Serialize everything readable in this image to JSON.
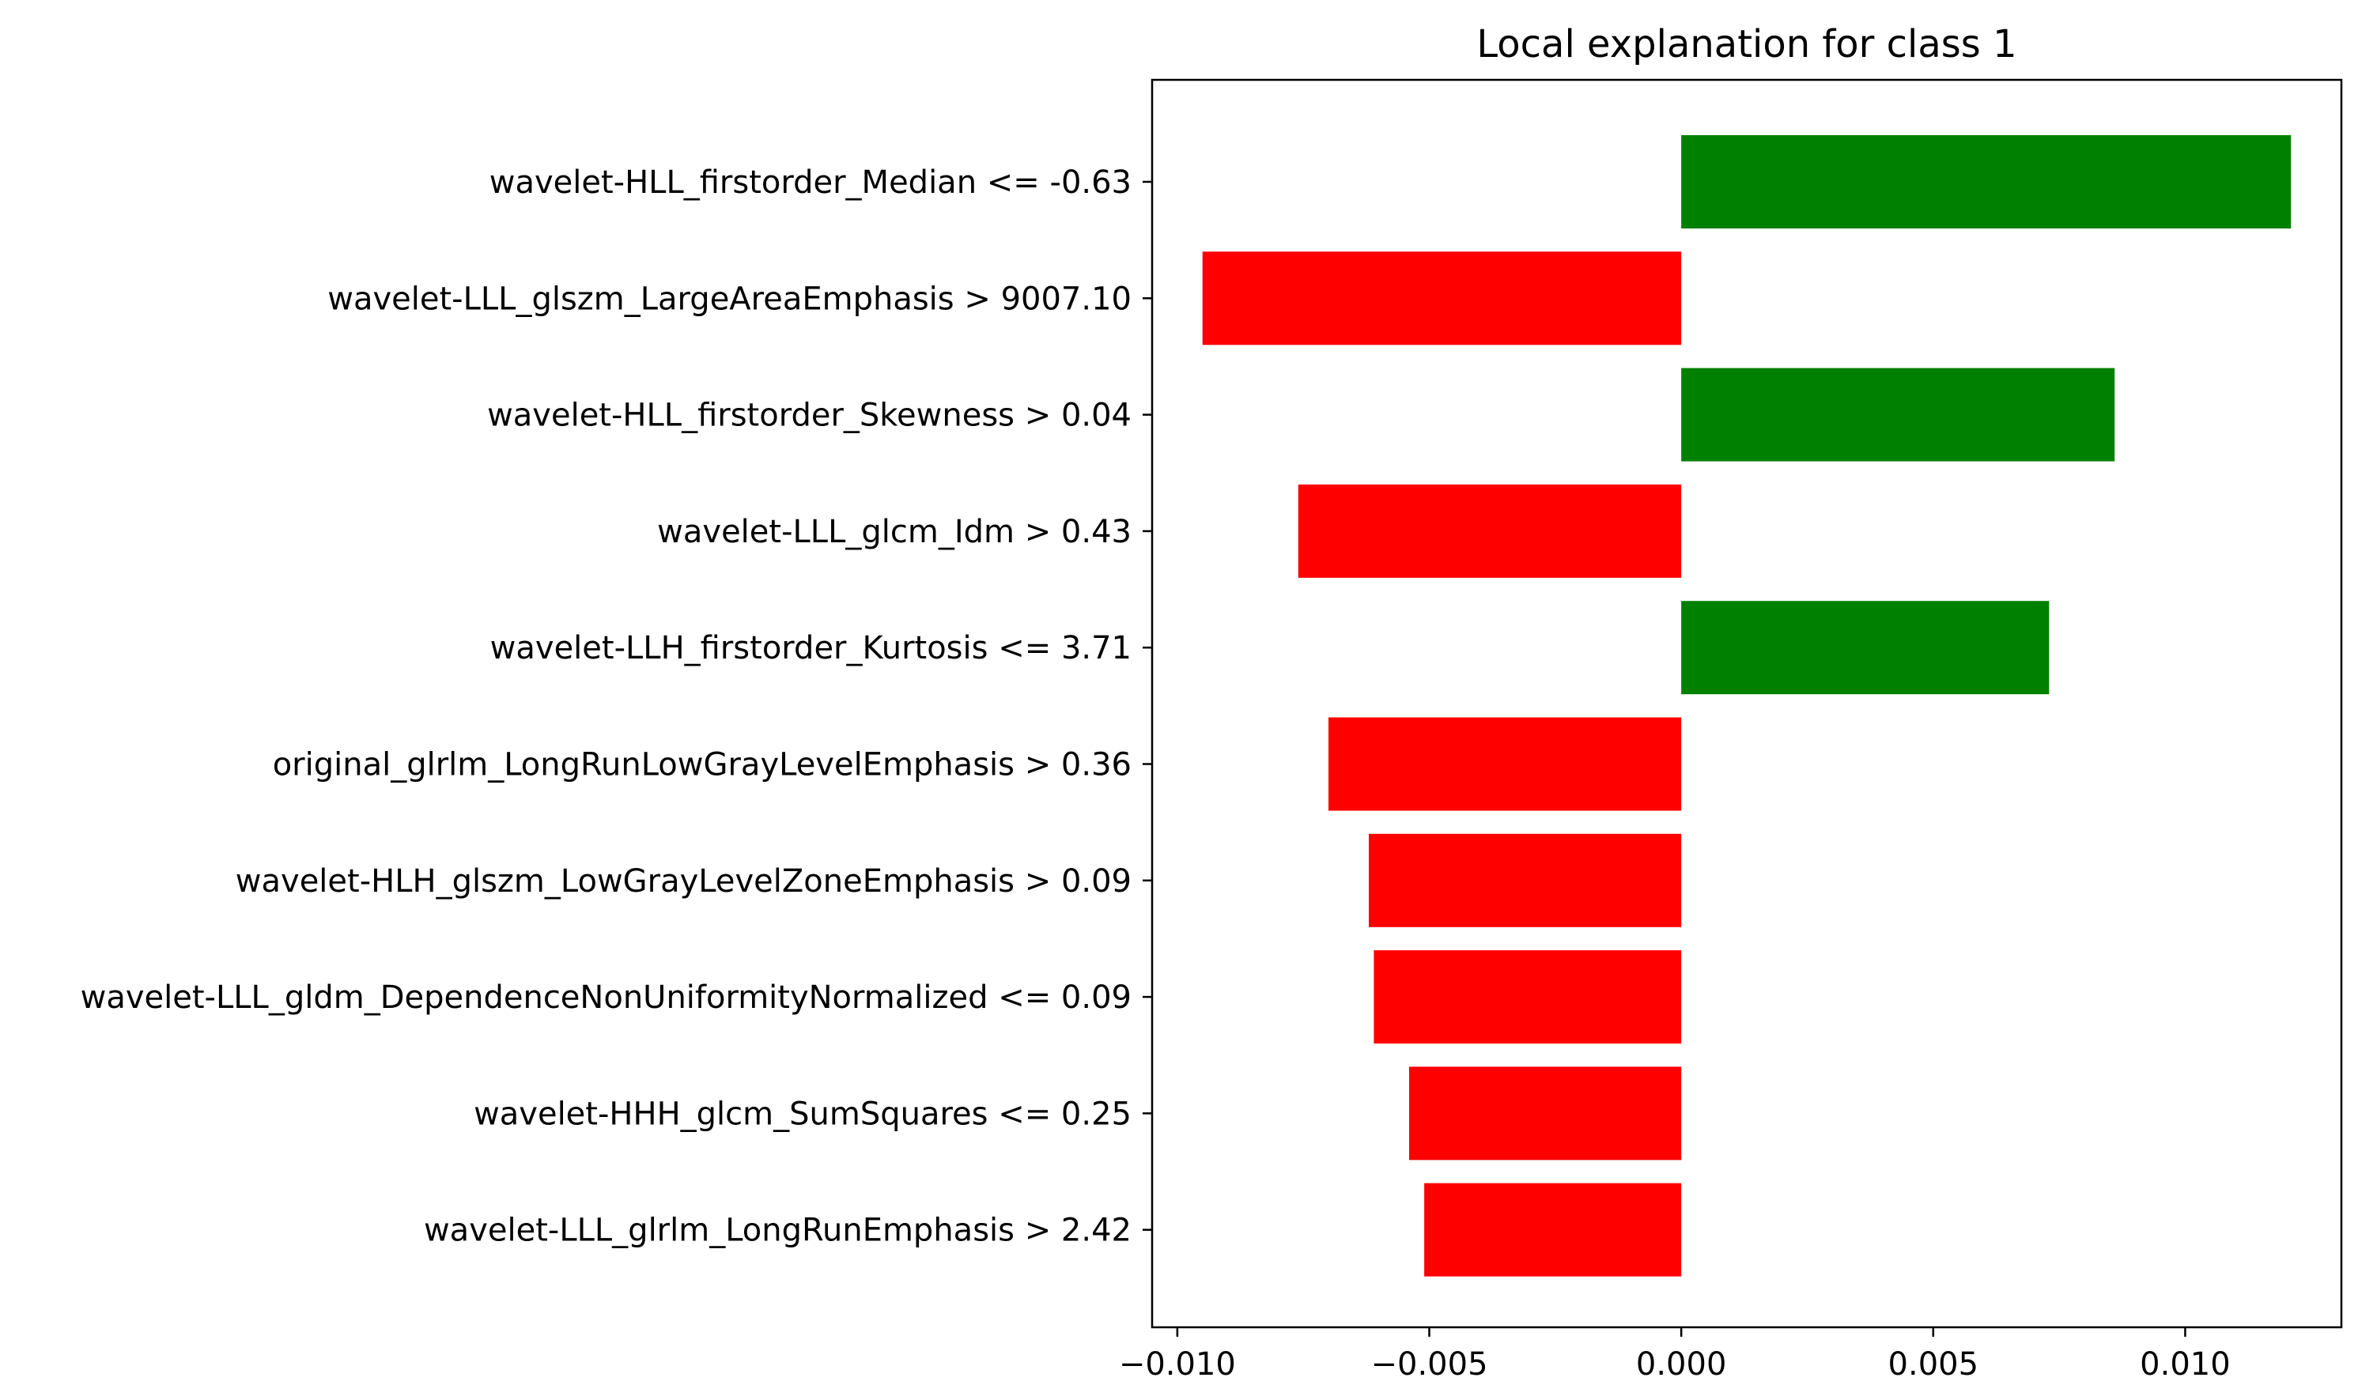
{
  "chart_data": {
    "type": "bar",
    "orientation": "horizontal",
    "title": "Local explanation for class 1",
    "xlabel": "",
    "ylabel": "",
    "xlim": [
      -0.0105,
      0.0131
    ],
    "xticks": [
      -0.01,
      -0.005,
      0.0,
      0.005,
      0.01
    ],
    "xtick_labels": [
      "−0.010",
      "−0.005",
      "0.000",
      "0.005",
      "0.010"
    ],
    "grid": false,
    "legend": "none",
    "colors": {
      "positive": "#008000",
      "negative": "#ff0000"
    },
    "categories": [
      "wavelet-HLL_firstorder_Median <= -0.63",
      "wavelet-LLL_glszm_LargeAreaEmphasis > 9007.10",
      "wavelet-HLL_firstorder_Skewness > 0.04",
      "wavelet-LLL_glcm_Idm > 0.43",
      "wavelet-LLH_firstorder_Kurtosis <= 3.71",
      "original_glrlm_LongRunLowGrayLevelEmphasis > 0.36",
      "wavelet-HLH_glszm_LowGrayLevelZoneEmphasis > 0.09",
      "wavelet-LLL_gldm_DependenceNonUniformityNormalized <= 0.09",
      "wavelet-HHH_glcm_SumSquares <= 0.25",
      "wavelet-LLL_glrlm_LongRunEmphasis > 2.42"
    ],
    "values": [
      0.0121,
      -0.0095,
      0.0086,
      -0.0076,
      0.0073,
      -0.007,
      -0.0062,
      -0.0061,
      -0.0054,
      -0.0051
    ]
  }
}
